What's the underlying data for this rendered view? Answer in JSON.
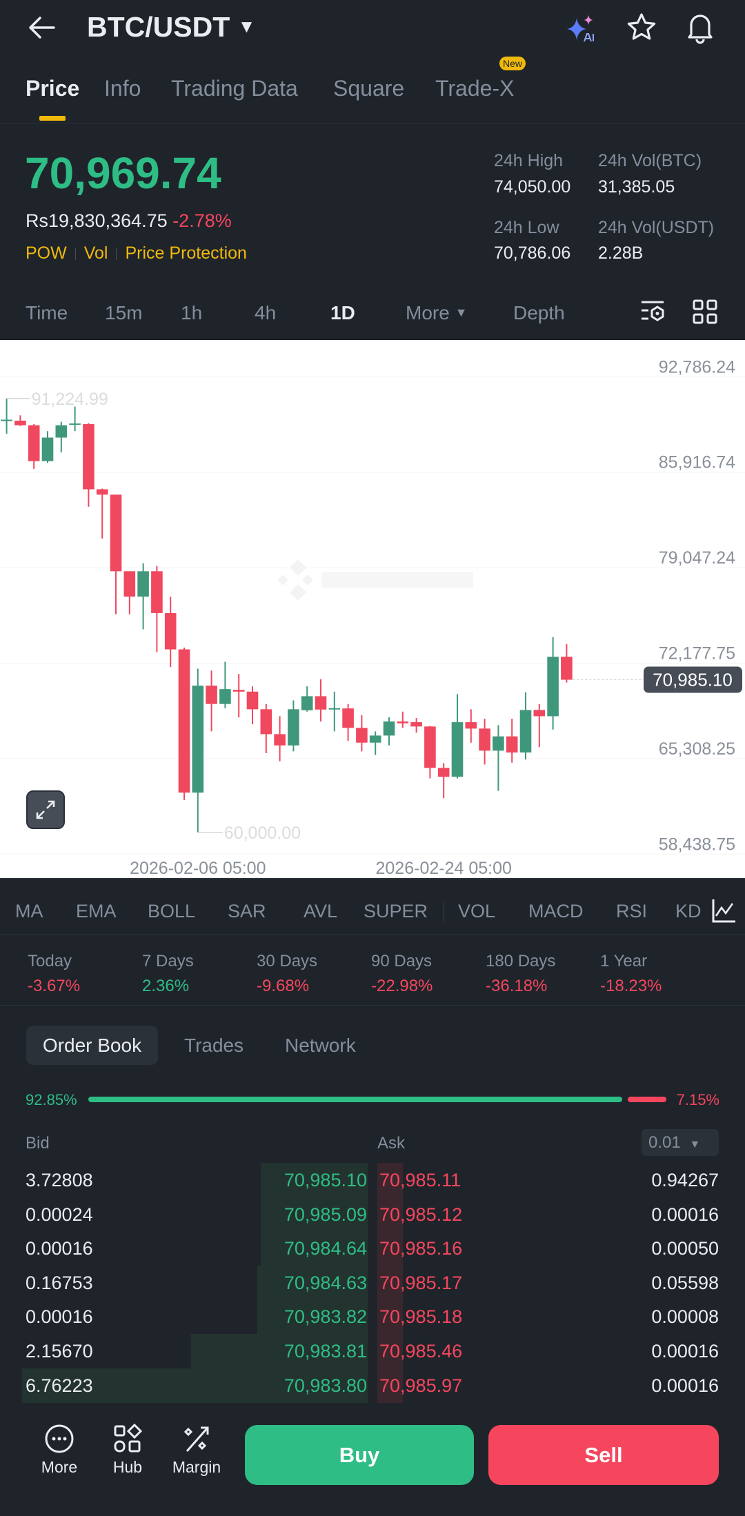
{
  "header": {
    "title": "BTC/USDT",
    "icons": [
      "back-arrow-icon",
      "caret-down-icon",
      "ai-sparkle-icon",
      "star-icon",
      "bell-icon"
    ]
  },
  "tabs": [
    {
      "label": "Price",
      "active": true
    },
    {
      "label": "Info"
    },
    {
      "label": "Trading Data"
    },
    {
      "label": "Square"
    },
    {
      "label": "Trade-X",
      "badge": "New"
    }
  ],
  "ticker": {
    "last_price": "70,969.74",
    "fiat_price": "Rs19,830,364.75",
    "change": "-2.78%",
    "tags": [
      "POW",
      "Vol",
      "Price Protection"
    ],
    "stats": [
      {
        "label": "24h High",
        "value": "74,050.00"
      },
      {
        "label": "24h Vol(BTC)",
        "value": "31,385.05"
      },
      {
        "label": "24h Low",
        "value": "70,786.06"
      },
      {
        "label": "24h Vol(USDT)",
        "value": "2.28B"
      }
    ]
  },
  "intervals": [
    {
      "label": "Time"
    },
    {
      "label": "15m"
    },
    {
      "label": "1h"
    },
    {
      "label": "4h"
    },
    {
      "label": "1D",
      "active": true
    },
    {
      "label": "More"
    },
    {
      "label": "Depth"
    }
  ],
  "chart_data": {
    "type": "candlestick",
    "y_ticks": [
      "92,786.24",
      "85,916.74",
      "79,047.24",
      "72,177.75",
      "65,308.25",
      "58,438.75"
    ],
    "y_tick_values": [
      92786.24,
      85916.74,
      79047.24,
      72177.75,
      65308.25,
      58438.75
    ],
    "x_tick_labels": [
      {
        "label": "2026-02-06 05:00",
        "candle_index": 14
      },
      {
        "label": "2026-02-24 05:00",
        "candle_index": 32
      }
    ],
    "high_marker": {
      "label": "91,224.99",
      "candle_index": 0
    },
    "low_marker": {
      "label": "60,000.00",
      "candle_index": 14
    },
    "current_price": {
      "label": "70,985.10",
      "value": 70985.1
    },
    "ylim": [
      58438.75,
      92786.24
    ],
    "colors": {
      "up": "#40987c",
      "down": "#f0485e"
    },
    "candles_ohlc": [
      [
        89680,
        89700,
        91225,
        88690
      ],
      [
        89630,
        89300,
        90010,
        89250
      ],
      [
        89300,
        86720,
        89380,
        86160
      ],
      [
        86720,
        88410,
        88870,
        86590
      ],
      [
        88410,
        89300,
        89550,
        87350
      ],
      [
        89380,
        89430,
        90640,
        88870
      ],
      [
        89380,
        84690,
        89450,
        83430
      ],
      [
        84690,
        84310,
        84740,
        81150
      ],
      [
        84310,
        78790,
        84310,
        75700
      ],
      [
        78790,
        76970,
        78790,
        75700
      ],
      [
        76970,
        78790,
        79370,
        74610
      ],
      [
        78790,
        75780,
        79170,
        72970
      ],
      [
        75780,
        73170,
        76970,
        71900
      ],
      [
        73170,
        62860,
        73300,
        62330
      ],
      [
        62860,
        70560,
        71780,
        60000
      ],
      [
        70560,
        69240,
        71650,
        67270
      ],
      [
        69240,
        70310,
        72280,
        68940
      ],
      [
        70260,
        70130,
        71400,
        68280
      ],
      [
        70130,
        68860,
        70510,
        67780
      ],
      [
        68860,
        67070,
        69240,
        65700
      ],
      [
        67070,
        66260,
        68360,
        65120
      ],
      [
        66260,
        68860,
        69500,
        65830
      ],
      [
        68790,
        69800,
        70510,
        68690
      ],
      [
        69800,
        68840,
        71020,
        67980
      ],
      [
        68860,
        68940,
        70130,
        67270
      ],
      [
        68920,
        67520,
        69240,
        66590
      ],
      [
        67520,
        66460,
        68430,
        65830
      ],
      [
        66460,
        66970,
        67270,
        65570
      ],
      [
        66970,
        67980,
        68280,
        66260
      ],
      [
        67980,
        67850,
        68690,
        67520
      ],
      [
        67930,
        67620,
        68230,
        67170
      ],
      [
        67620,
        64640,
        67670,
        63880
      ],
      [
        64640,
        64000,
        64990,
        62460
      ],
      [
        64000,
        67930,
        69950,
        63880
      ],
      [
        67930,
        67470,
        68860,
        66460
      ],
      [
        67470,
        65880,
        68180,
        64890
      ],
      [
        65880,
        66910,
        67720,
        62990
      ],
      [
        66910,
        65750,
        68180,
        65020
      ],
      [
        65750,
        68810,
        70080,
        65240
      ],
      [
        68810,
        68360,
        69240,
        66130
      ],
      [
        68360,
        72640,
        74050,
        67400
      ],
      [
        72640,
        70985.1,
        73550,
        70786.06
      ]
    ]
  },
  "indicators": [
    "MA",
    "EMA",
    "BOLL",
    "SAR",
    "AVL",
    "SUPER",
    "VOL",
    "MACD",
    "RSI",
    "KD"
  ],
  "periods": [
    {
      "label": "Today",
      "value": "-3.67%",
      "up": false
    },
    {
      "label": "7 Days",
      "value": "2.36%",
      "up": true
    },
    {
      "label": "30 Days",
      "value": "-9.68%",
      "up": false
    },
    {
      "label": "90 Days",
      "value": "-22.98%",
      "up": false
    },
    {
      "label": "180 Days",
      "value": "-36.18%",
      "up": false
    },
    {
      "label": "1 Year",
      "value": "-18.23%",
      "up": false
    }
  ],
  "orderbook": {
    "tabs": [
      "Order Book",
      "Trades",
      "Network"
    ],
    "bid_ratio": "92.85%",
    "ask_ratio": "7.15%",
    "bid_ratio_value": 92.85,
    "bid_label": "Bid",
    "ask_label": "Ask",
    "precision": "0.01",
    "rows": [
      {
        "bid_qty": "3.72808",
        "bid_price": "70,985.10",
        "ask_price": "70,985.11",
        "ask_qty": "0.94267"
      },
      {
        "bid_qty": "0.00024",
        "bid_price": "70,985.09",
        "ask_price": "70,985.12",
        "ask_qty": "0.00016"
      },
      {
        "bid_qty": "0.00016",
        "bid_price": "70,984.64",
        "ask_price": "70,985.16",
        "ask_qty": "0.00050"
      },
      {
        "bid_qty": "0.16753",
        "bid_price": "70,984.63",
        "ask_price": "70,985.17",
        "ask_qty": "0.05598"
      },
      {
        "bid_qty": "0.00016",
        "bid_price": "70,983.82",
        "ask_price": "70,985.18",
        "ask_qty": "0.00008"
      },
      {
        "bid_qty": "2.15670",
        "bid_price": "70,983.81",
        "ask_price": "70,985.46",
        "ask_qty": "0.00016"
      },
      {
        "bid_qty": "6.76223",
        "bid_price": "70,983.80",
        "ask_price": "70,985.97",
        "ask_qty": "0.00016"
      }
    ],
    "bid_depth_fraction": [
      0.29,
      0.29,
      0.29,
      0.3,
      0.3,
      0.48,
      0.94
    ],
    "ask_depth_fraction": [
      0.07,
      0.07,
      0.07,
      0.07,
      0.07,
      0.07,
      0.07
    ]
  },
  "bottom": {
    "nav": [
      {
        "label": "More",
        "icon": "more-circle-icon"
      },
      {
        "label": "Hub",
        "icon": "hub-grid-icon"
      },
      {
        "label": "Margin",
        "icon": "margin-percent-icon"
      }
    ],
    "buy": "Buy",
    "sell": "Sell"
  },
  "colors": {
    "bg": "#1f242b",
    "green": "#2ebd85",
    "red": "#f6465d",
    "accent": "#f0b90b"
  }
}
